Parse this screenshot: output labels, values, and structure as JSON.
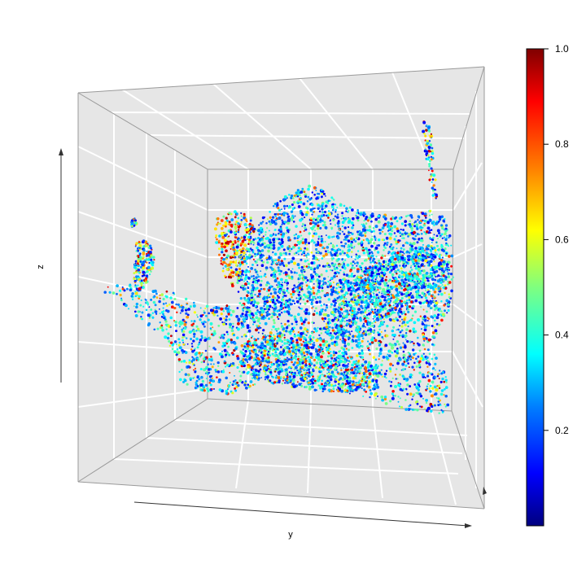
{
  "chart_data": {
    "type": "scatter",
    "variant": "3d-point-cloud-surface",
    "title": "",
    "xlabel": "",
    "ylabel": "y",
    "zlabel": "z",
    "background": "#e6e6e6",
    "grid": true,
    "grid_color": "#ffffff",
    "colorbar": {
      "position": "right",
      "range": [
        0.0,
        1.0
      ],
      "ticks": [
        0.2,
        0.4,
        0.6,
        0.8,
        1.0
      ],
      "tick_labels": [
        "0.2",
        "0.4",
        "0.6",
        "0.8",
        "1.0"
      ],
      "colormap": "jet",
      "colormap_stops": [
        "#00007f",
        "#0000ff",
        "#007fff",
        "#00ffff",
        "#7fff7f",
        "#ffff00",
        "#ff7f00",
        "#ff0000",
        "#7f0000"
      ]
    },
    "series": [
      {
        "values_range": [
          0.0,
          1.0
        ],
        "dominant_values": [
          0.15,
          0.25,
          0.35,
          0.45
        ],
        "accent_values": [
          0.6,
          0.75,
          0.9
        ]
      }
    ]
  }
}
